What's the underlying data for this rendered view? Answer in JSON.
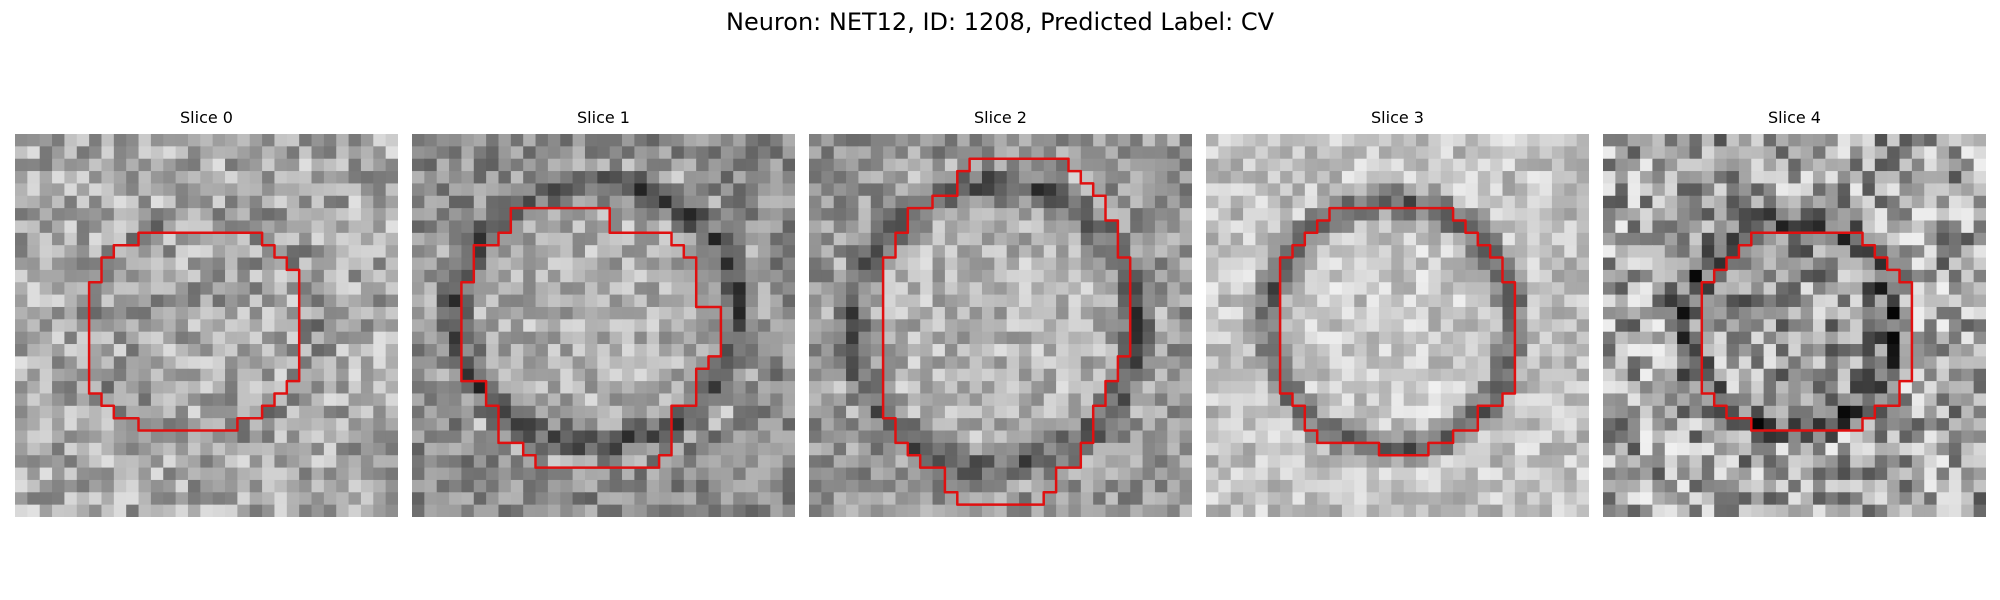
{
  "figure": {
    "title": "Neuron: NET12, ID: 1208, Predicted Label: CV"
  },
  "contour_color": "#e01010",
  "slices": [
    {
      "title": "Slice 0",
      "image": "grayscale-micrograph-noisy-texture",
      "contour": "red-outline"
    },
    {
      "title": "Slice 1",
      "image": "grayscale-micrograph-noisy-texture",
      "contour": "red-outline"
    },
    {
      "title": "Slice 2",
      "image": "grayscale-micrograph-noisy-texture",
      "contour": "red-outline"
    },
    {
      "title": "Slice 3",
      "image": "grayscale-micrograph-noisy-texture",
      "contour": "red-outline"
    },
    {
      "title": "Slice 4",
      "image": "grayscale-micrograph-noisy-texture",
      "contour": "red-outline"
    }
  ]
}
